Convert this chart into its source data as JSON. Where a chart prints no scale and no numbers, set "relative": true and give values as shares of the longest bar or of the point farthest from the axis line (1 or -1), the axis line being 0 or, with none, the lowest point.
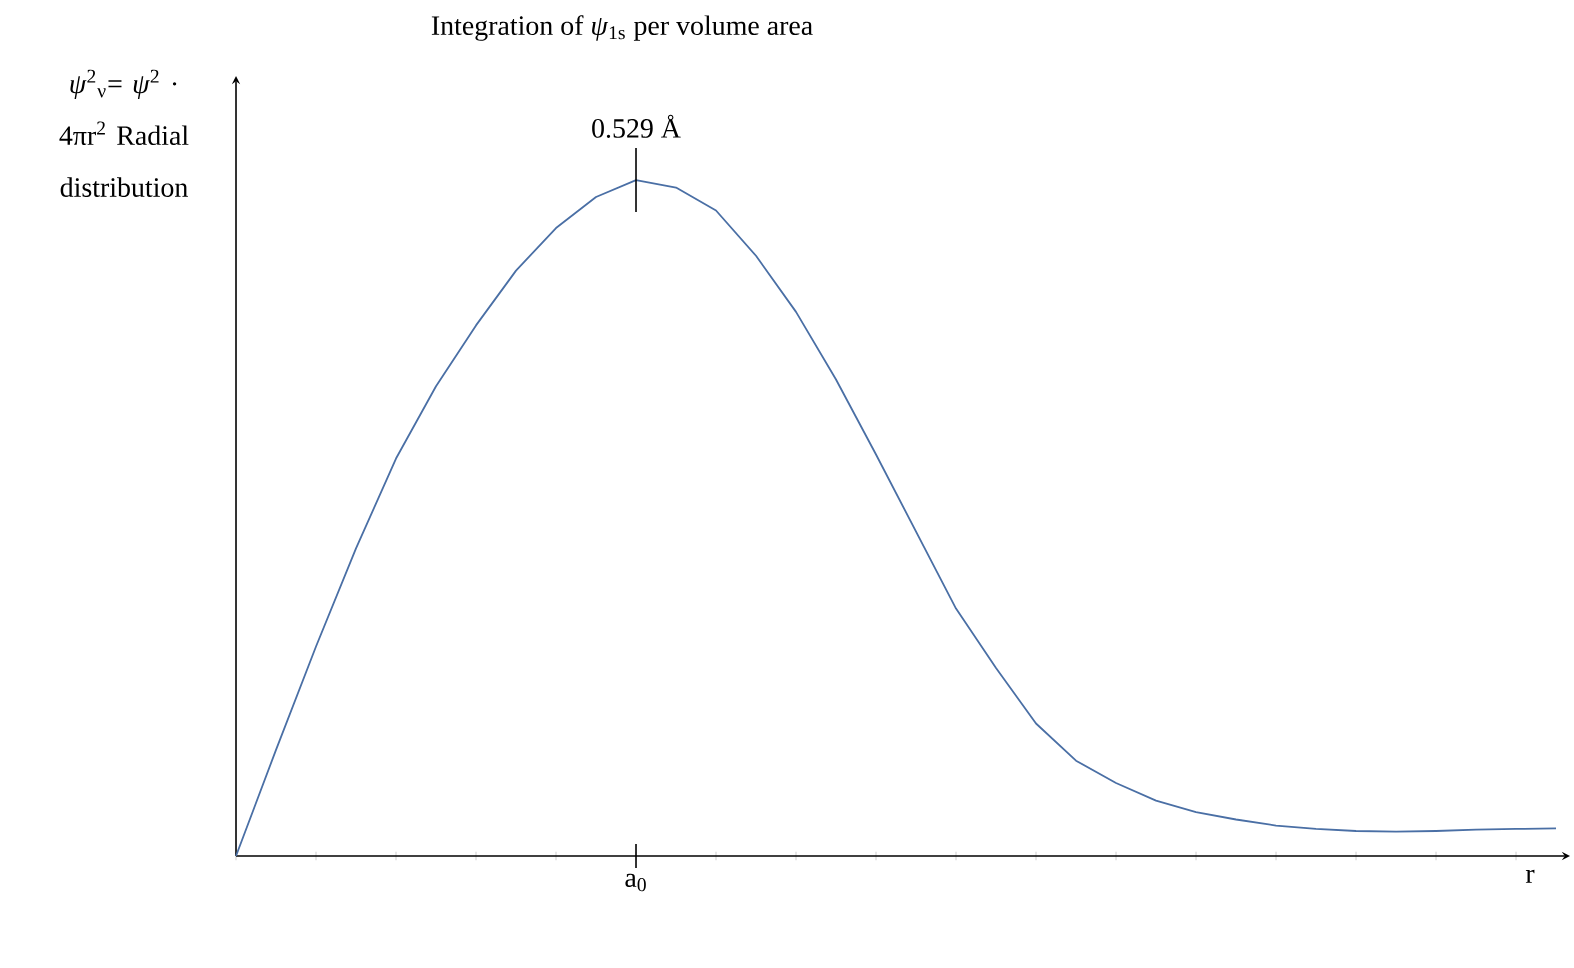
{
  "chart_data": {
    "type": "line",
    "relative": true,
    "title": "Integration of *ψ*$_{1s}$ per volume area",
    "ylabel": "*ψ*$^{2}$$_{ν}$= *ψ*$^{2}$ · 4πr$^{2}$ Radial distribution",
    "xlabel": "r",
    "annotations": [
      "0.529 Å",
      "a$_{0}$"
    ],
    "categories": [
      null,
      null,
      null,
      null,
      null,
      null,
      null,
      null,
      null,
      null,
      null,
      null,
      null,
      null,
      null,
      null,
      null,
      null,
      null,
      null,
      null,
      null,
      null,
      null,
      null,
      null,
      null,
      null,
      null,
      null,
      null,
      null,
      null,
      null
    ],
    "series": [
      {
        "color": "#4a6fa5",
        "values": [
          0,
          0.157,
          0.31,
          0.455,
          0.588,
          0.695,
          0.785,
          0.866,
          0.929,
          0.975,
          1.0,
          0.989,
          0.955,
          0.888,
          0.805,
          0.705,
          0.594,
          0.48,
          0.366,
          0.278,
          0.196,
          0.141,
          0.108,
          0.082,
          0.065,
          0.054,
          0.045,
          0.04,
          0.037,
          0.036,
          0.037,
          0.039,
          0.04,
          0.041
        ]
      }
    ]
  }
}
